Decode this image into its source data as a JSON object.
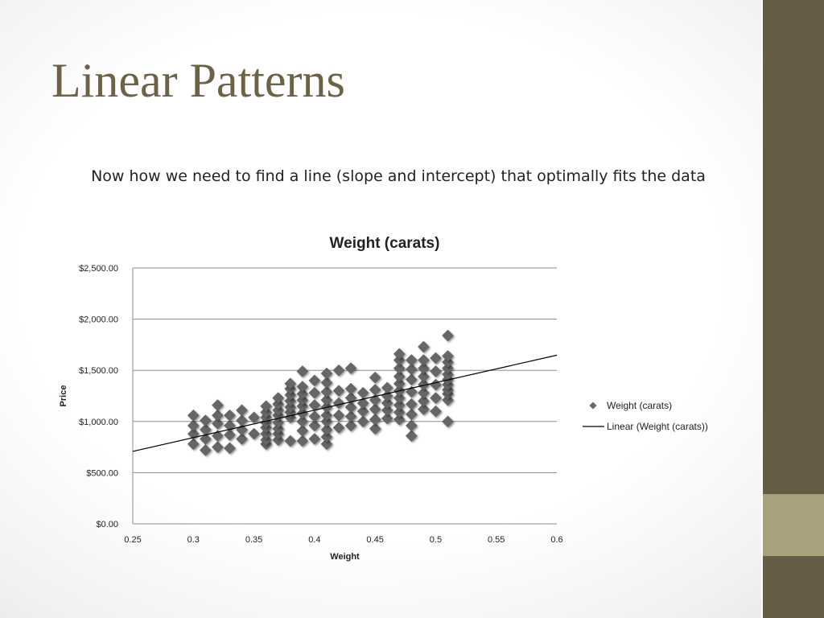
{
  "slide": {
    "title": "Linear Patterns",
    "subtitle": "Now how we need to find a line (slope and intercept) that optimally fits the data"
  },
  "colors": {
    "side_bar": "#655c46",
    "side_accent": "#a8a27c",
    "title": "#6b6248",
    "marker": "#666666",
    "trendline": "#000000",
    "gridline": "#8c8c8c"
  },
  "chart_data": {
    "type": "scatter",
    "title": "Weight (carats)",
    "xlabel": "Weight",
    "ylabel": "Price",
    "xlim": [
      0.25,
      0.6
    ],
    "ylim": [
      0,
      2500
    ],
    "x_ticks": [
      "0.25",
      "0.3",
      "0.35",
      "0.4",
      "0.45",
      "0.5",
      "0.55",
      "0.6"
    ],
    "y_ticks": [
      "$0.00",
      "$500.00",
      "$1,000.00",
      "$1,500.00",
      "$2,000.00",
      "$2,500.00"
    ],
    "grid": "horizontal",
    "legend_position": "right",
    "legend": [
      "Weight (carats)",
      "Linear (Weight (carats))"
    ],
    "marker": "diamond",
    "trendline": {
      "type": "linear",
      "x": [
        0.25,
        0.6
      ],
      "y": [
        708,
        1648
      ]
    },
    "series": [
      {
        "name": "Weight (carats)",
        "points": [
          [
            0.3,
            780
          ],
          [
            0.3,
            880
          ],
          [
            0.3,
            960
          ],
          [
            0.3,
            1060
          ],
          [
            0.31,
            720
          ],
          [
            0.31,
            830
          ],
          [
            0.31,
            920
          ],
          [
            0.31,
            1010
          ],
          [
            0.32,
            750
          ],
          [
            0.32,
            860
          ],
          [
            0.32,
            980
          ],
          [
            0.32,
            1060
          ],
          [
            0.32,
            1160
          ],
          [
            0.33,
            740
          ],
          [
            0.33,
            870
          ],
          [
            0.33,
            960
          ],
          [
            0.33,
            1060
          ],
          [
            0.34,
            830
          ],
          [
            0.34,
            920
          ],
          [
            0.34,
            1010
          ],
          [
            0.34,
            1110
          ],
          [
            0.35,
            880
          ],
          [
            0.35,
            1040
          ],
          [
            0.36,
            780
          ],
          [
            0.36,
            820
          ],
          [
            0.36,
            880
          ],
          [
            0.36,
            940
          ],
          [
            0.36,
            990
          ],
          [
            0.36,
            1040
          ],
          [
            0.36,
            1090
          ],
          [
            0.36,
            1150
          ],
          [
            0.37,
            820
          ],
          [
            0.37,
            880
          ],
          [
            0.37,
            930
          ],
          [
            0.37,
            990
          ],
          [
            0.37,
            1060
          ],
          [
            0.37,
            1110
          ],
          [
            0.37,
            1170
          ],
          [
            0.37,
            1230
          ],
          [
            0.38,
            810
          ],
          [
            0.38,
            1040
          ],
          [
            0.38,
            1090
          ],
          [
            0.38,
            1140
          ],
          [
            0.38,
            1200
          ],
          [
            0.38,
            1260
          ],
          [
            0.38,
            1320
          ],
          [
            0.38,
            1370
          ],
          [
            0.39,
            810
          ],
          [
            0.39,
            910
          ],
          [
            0.39,
            1000
          ],
          [
            0.39,
            1080
          ],
          [
            0.39,
            1150
          ],
          [
            0.39,
            1210
          ],
          [
            0.39,
            1270
          ],
          [
            0.39,
            1340
          ],
          [
            0.39,
            1490
          ],
          [
            0.4,
            830
          ],
          [
            0.4,
            960
          ],
          [
            0.4,
            1050
          ],
          [
            0.4,
            1160
          ],
          [
            0.4,
            1280
          ],
          [
            0.4,
            1400
          ],
          [
            0.41,
            780
          ],
          [
            0.41,
            850
          ],
          [
            0.41,
            920
          ],
          [
            0.41,
            1000
          ],
          [
            0.41,
            1060
          ],
          [
            0.41,
            1140
          ],
          [
            0.41,
            1210
          ],
          [
            0.41,
            1290
          ],
          [
            0.41,
            1380
          ],
          [
            0.41,
            1470
          ],
          [
            0.42,
            940
          ],
          [
            0.42,
            1060
          ],
          [
            0.42,
            1180
          ],
          [
            0.42,
            1300
          ],
          [
            0.42,
            1500
          ],
          [
            0.43,
            960
          ],
          [
            0.43,
            1050
          ],
          [
            0.43,
            1140
          ],
          [
            0.43,
            1230
          ],
          [
            0.43,
            1320
          ],
          [
            0.43,
            1520
          ],
          [
            0.44,
            1000
          ],
          [
            0.44,
            1100
          ],
          [
            0.44,
            1180
          ],
          [
            0.44,
            1280
          ],
          [
            0.45,
            930
          ],
          [
            0.45,
            1020
          ],
          [
            0.45,
            1120
          ],
          [
            0.45,
            1210
          ],
          [
            0.45,
            1310
          ],
          [
            0.45,
            1430
          ],
          [
            0.46,
            1030
          ],
          [
            0.46,
            1110
          ],
          [
            0.46,
            1180
          ],
          [
            0.46,
            1250
          ],
          [
            0.46,
            1330
          ],
          [
            0.47,
            1020
          ],
          [
            0.47,
            1090
          ],
          [
            0.47,
            1160
          ],
          [
            0.47,
            1230
          ],
          [
            0.47,
            1300
          ],
          [
            0.47,
            1370
          ],
          [
            0.47,
            1440
          ],
          [
            0.47,
            1520
          ],
          [
            0.47,
            1600
          ],
          [
            0.47,
            1660
          ],
          [
            0.48,
            860
          ],
          [
            0.48,
            960
          ],
          [
            0.48,
            1070
          ],
          [
            0.48,
            1170
          ],
          [
            0.48,
            1290
          ],
          [
            0.48,
            1410
          ],
          [
            0.48,
            1510
          ],
          [
            0.48,
            1600
          ],
          [
            0.49,
            1120
          ],
          [
            0.49,
            1200
          ],
          [
            0.49,
            1280
          ],
          [
            0.49,
            1360
          ],
          [
            0.49,
            1440
          ],
          [
            0.49,
            1520
          ],
          [
            0.49,
            1600
          ],
          [
            0.49,
            1730
          ],
          [
            0.5,
            1100
          ],
          [
            0.5,
            1230
          ],
          [
            0.5,
            1360
          ],
          [
            0.5,
            1490
          ],
          [
            0.5,
            1620
          ],
          [
            0.51,
            1000
          ],
          [
            0.51,
            1210
          ],
          [
            0.51,
            1270
          ],
          [
            0.51,
            1310
          ],
          [
            0.51,
            1360
          ],
          [
            0.51,
            1410
          ],
          [
            0.51,
            1460
          ],
          [
            0.51,
            1520
          ],
          [
            0.51,
            1580
          ],
          [
            0.51,
            1640
          ],
          [
            0.51,
            1840
          ]
        ]
      }
    ]
  }
}
